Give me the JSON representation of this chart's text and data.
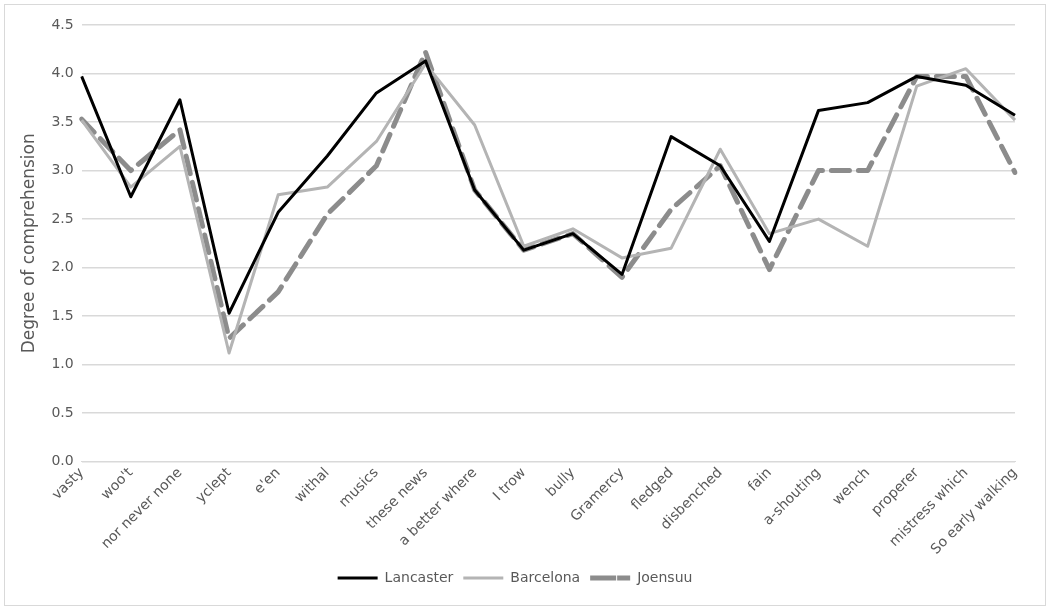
{
  "chart_data": {
    "type": "line",
    "ylabel": "Degree of comprehension",
    "categories": [
      "vasty",
      "woo't",
      "nor never none",
      "yclept",
      "e'en",
      "withal",
      "musics",
      "these news",
      "a better where",
      "I trow",
      "bully",
      "Gramercy",
      "fledged",
      "disbenched",
      "fain",
      "a-shouting",
      "wench",
      "properer",
      "mistress which",
      "So early walking"
    ],
    "series": [
      {
        "name": "Lancaster",
        "color": "#000000",
        "line_style": "solid",
        "values": [
          3.97,
          2.73,
          3.73,
          1.53,
          2.57,
          3.15,
          3.8,
          4.13,
          2.8,
          2.18,
          2.35,
          1.93,
          3.35,
          3.05,
          2.27,
          3.62,
          3.7,
          3.97,
          3.88,
          3.57
        ]
      },
      {
        "name": "Barcelona",
        "color": "#b4b4b4",
        "line_style": "solid",
        "values": [
          3.52,
          2.83,
          3.25,
          1.12,
          2.75,
          2.83,
          3.3,
          4.1,
          3.47,
          2.22,
          2.4,
          2.1,
          2.2,
          3.22,
          2.35,
          2.5,
          2.22,
          3.87,
          4.05,
          3.52
        ]
      },
      {
        "name": "Joensuu",
        "color": "#8c8c8c",
        "line_style": "dashed",
        "values": [
          3.53,
          3.0,
          3.42,
          1.27,
          1.75,
          2.55,
          3.05,
          4.22,
          2.8,
          2.18,
          2.35,
          1.9,
          2.6,
          3.05,
          1.98,
          3.0,
          3.0,
          3.97,
          3.97,
          2.98
        ]
      }
    ],
    "ylim": [
      0,
      4.5
    ],
    "yticks": [
      {
        "value": 0,
        "label": "0.0"
      },
      0.5,
      {
        "value": 1,
        "label": "1.0"
      },
      1.5,
      {
        "value": 2,
        "label": "2.0"
      },
      2.5,
      {
        "value": 3,
        "label": "3.0"
      },
      3.5,
      {
        "value": 4,
        "label": "4.0"
      },
      4.5
    ],
    "grid": "y",
    "legend": "bottom",
    "marker": "none"
  }
}
